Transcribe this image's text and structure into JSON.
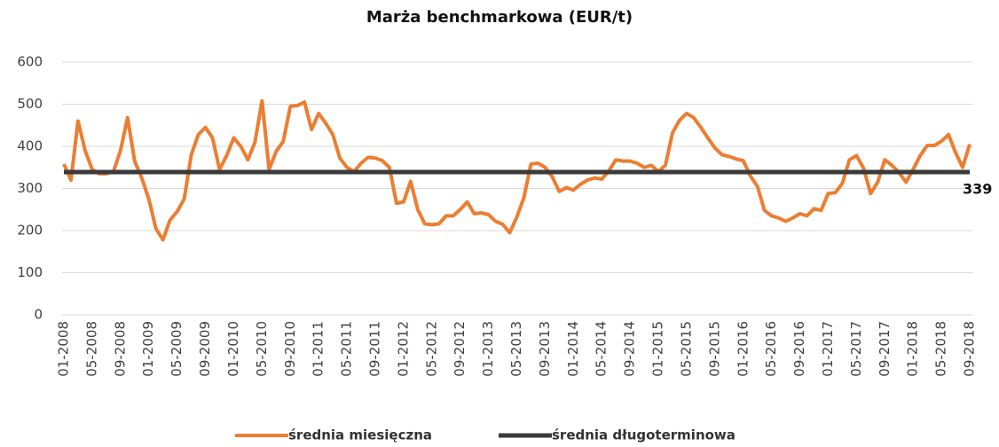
{
  "chart_data": {
    "type": "line",
    "title": "Marża benchmarkowa (EUR/t)",
    "categories": [
      "01-2008",
      null,
      null,
      null,
      "05-2008",
      null,
      null,
      null,
      "09-2008",
      null,
      null,
      null,
      "01-2009",
      null,
      null,
      null,
      "05-2009",
      null,
      null,
      null,
      "09-2009",
      null,
      null,
      null,
      "01-2010",
      null,
      null,
      null,
      "05-2010",
      null,
      null,
      null,
      "09-2010",
      null,
      null,
      null,
      "01-2011",
      null,
      null,
      null,
      "05-2011",
      null,
      null,
      null,
      "09-2011",
      null,
      null,
      null,
      "01-2012",
      null,
      null,
      null,
      "05-2012",
      null,
      null,
      null,
      "09-2012",
      null,
      null,
      null,
      "01-2013",
      null,
      null,
      null,
      "05-2013",
      null,
      null,
      null,
      "09-2013",
      null,
      null,
      null,
      "01-2014",
      null,
      null,
      null,
      "05-2014",
      null,
      null,
      null,
      "09-2014",
      null,
      null,
      null,
      "01-2015",
      null,
      null,
      null,
      "05-2015",
      null,
      null,
      null,
      "09-2015",
      null,
      null,
      null,
      "01-2016",
      null,
      null,
      null,
      "05-2016",
      null,
      null,
      null,
      "09-2016",
      null,
      null,
      null,
      "01-2017",
      null,
      null,
      null,
      "05-2017",
      null,
      null,
      null,
      "09-2017",
      null,
      null,
      null,
      "01-2018",
      null,
      null,
      null,
      "05-2018",
      null,
      null,
      null,
      "09-2018"
    ],
    "series": [
      {
        "name": "średnia miesięczna",
        "color": "#ed7d31",
        "values": [
          358,
          320,
          460,
          390,
          345,
          335,
          335,
          340,
          390,
          468,
          365,
          325,
          275,
          205,
          178,
          225,
          245,
          275,
          380,
          428,
          445,
          420,
          345,
          378,
          420,
          400,
          368,
          410,
          508,
          345,
          388,
          412,
          495,
          497,
          505,
          440,
          478,
          455,
          428,
          372,
          350,
          340,
          360,
          374,
          372,
          366,
          350,
          265,
          268,
          317,
          250,
          216,
          214,
          216,
          235,
          235,
          250,
          268,
          240,
          242,
          238,
          222,
          215,
          195,
          232,
          278,
          358,
          360,
          350,
          328,
          293,
          302,
          296,
          310,
          320,
          325,
          322,
          342,
          368,
          365,
          365,
          360,
          350,
          355,
          340,
          355,
          432,
          462,
          478,
          468,
          445,
          420,
          396,
          380,
          376,
          370,
          366,
          330,
          305,
          248,
          235,
          230,
          222,
          230,
          240,
          235,
          252,
          248,
          288,
          290,
          312,
          368,
          378,
          348,
          288,
          315,
          368,
          355,
          338,
          315,
          345,
          378,
          402,
          402,
          412,
          428,
          385,
          350,
          405
        ]
      },
      {
        "name": "średnia długoterminowa",
        "color": "#3a3a3a",
        "values": [
          339,
          339,
          339,
          339,
          339,
          339,
          339,
          339,
          339,
          339,
          339,
          339,
          339,
          339,
          339,
          339,
          339,
          339,
          339,
          339,
          339,
          339,
          339,
          339,
          339,
          339,
          339,
          339,
          339,
          339,
          339,
          339,
          339,
          339,
          339,
          339,
          339,
          339,
          339,
          339,
          339,
          339,
          339,
          339,
          339,
          339,
          339,
          339,
          339,
          339,
          339,
          339,
          339,
          339,
          339,
          339,
          339,
          339,
          339,
          339,
          339,
          339,
          339,
          339,
          339,
          339,
          339,
          339,
          339,
          339,
          339,
          339,
          339,
          339,
          339,
          339,
          339,
          339,
          339,
          339,
          339,
          339,
          339,
          339,
          339,
          339,
          339,
          339,
          339,
          339,
          339,
          339,
          339,
          339,
          339,
          339,
          339,
          339,
          339,
          339,
          339,
          339,
          339,
          339,
          339,
          339,
          339,
          339,
          339,
          339,
          339,
          339,
          339,
          339,
          339,
          339,
          339,
          339,
          339,
          339,
          339,
          339,
          339,
          339,
          339,
          339,
          339,
          339,
          339
        ]
      }
    ],
    "ylim": [
      0,
      600
    ],
    "yticks": [
      0,
      100,
      200,
      300,
      400,
      500,
      600
    ],
    "grid": true,
    "legend": "bottom"
  }
}
